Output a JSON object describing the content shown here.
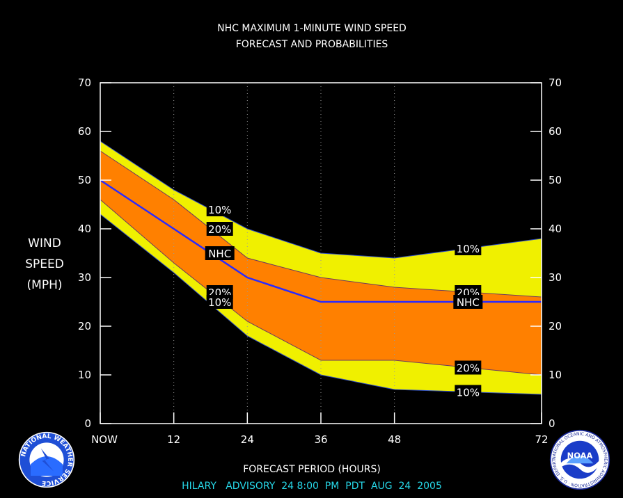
{
  "chart_data": {
    "type": "area",
    "title": "NHC MAXIMUM 1-MINUTE WIND SPEED",
    "subtitle": "FORECAST AND PROBABILITIES",
    "ylabel": [
      "WIND",
      "SPEED",
      "(MPH)"
    ],
    "xlabel": "FORECAST PERIOD (HOURS)",
    "footer": "HILARY   ADVISORY  24 8:00  PM  PDT  AUG  24  2005",
    "xlim": [
      0,
      72
    ],
    "ylim": [
      0,
      70
    ],
    "x_ticks": [
      {
        "x": 0,
        "label": "NOW"
      },
      {
        "x": 12,
        "label": "12"
      },
      {
        "x": 24,
        "label": "24"
      },
      {
        "x": 36,
        "label": "36"
      },
      {
        "x": 48,
        "label": "48"
      },
      {
        "x": 72,
        "label": "72"
      }
    ],
    "y_ticks": [
      0,
      10,
      20,
      30,
      40,
      50,
      60,
      70
    ],
    "grid_x": [
      12,
      24,
      36,
      48
    ],
    "x": [
      0,
      12,
      24,
      36,
      48,
      60,
      72
    ],
    "series": [
      {
        "name": "10%",
        "role": "upper",
        "values": [
          58,
          48,
          40,
          35,
          34,
          36,
          38
        ]
      },
      {
        "name": "20%",
        "role": "upper",
        "values": [
          56,
          46,
          34,
          30,
          28,
          27,
          26
        ]
      },
      {
        "name": "NHC",
        "role": "forecast",
        "values": [
          50,
          40,
          30,
          25,
          25,
          25,
          25
        ]
      },
      {
        "name": "20%",
        "role": "lower",
        "values": [
          46,
          33,
          21,
          13,
          13,
          11.5,
          10
        ]
      },
      {
        "name": "10%",
        "role": "lower",
        "values": [
          43,
          31,
          18,
          10,
          7,
          6.5,
          6
        ]
      }
    ],
    "band_labels": [
      {
        "text": "10%",
        "x": 19.5,
        "y": 44
      },
      {
        "text": "20%",
        "x": 19.5,
        "y": 40
      },
      {
        "text": "NHC",
        "x": 19.5,
        "y": 35
      },
      {
        "text": "20%",
        "x": 19.5,
        "y": 27
      },
      {
        "text": "10%",
        "x": 19.5,
        "y": 25
      },
      {
        "text": "10%",
        "x": 60,
        "y": 36
      },
      {
        "text": "20%",
        "x": 60,
        "y": 27
      },
      {
        "text": "NHC",
        "x": 60,
        "y": 25
      },
      {
        "text": "20%",
        "x": 60,
        "y": 11.5
      },
      {
        "text": "10%",
        "x": 60,
        "y": 6.5
      }
    ],
    "colors": {
      "outer_band": "#f0f000",
      "inner_band": "#ff8000",
      "forecast_line": "#2a2aff",
      "grid": "#9a9a9a",
      "footer": "#27d7e8"
    }
  },
  "logos": {
    "nws": "NATIONAL WEATHER SERVICE",
    "noaa": "NOAA"
  }
}
